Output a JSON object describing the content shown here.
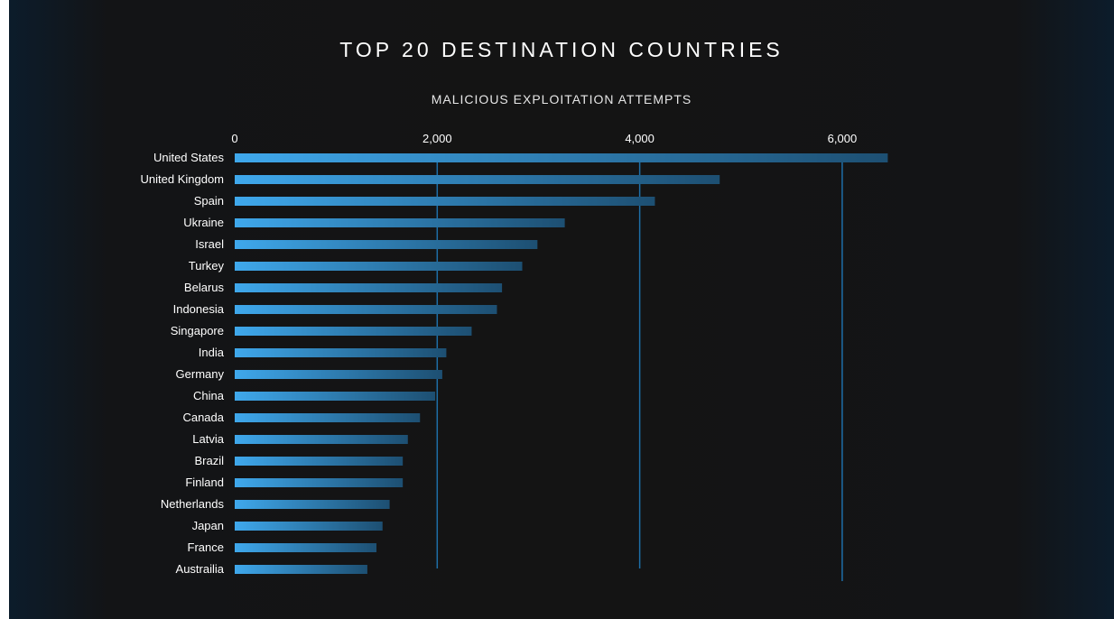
{
  "chart_data": {
    "type": "bar",
    "orientation": "horizontal",
    "title": "TOP 20 DESTINATION COUNTRIES",
    "subtitle": "MALICIOUS EXPLOITATION ATTEMPTS",
    "categories": [
      "United States",
      "United Kingdom",
      "Spain",
      "Ukraine",
      "Israel",
      "Turkey",
      "Belarus",
      "Indonesia",
      "Singapore",
      "India",
      "Germany",
      "China",
      "Canada",
      "Latvia",
      "Brazil",
      "Finland",
      "Netherlands",
      "Japan",
      "France",
      "Austrailia"
    ],
    "values": [
      6450,
      4790,
      4150,
      3260,
      2990,
      2840,
      2640,
      2590,
      2340,
      2090,
      2050,
      1980,
      1830,
      1710,
      1660,
      1660,
      1530,
      1460,
      1400,
      1310
    ],
    "xticks": [
      0,
      2000,
      4000,
      6000
    ],
    "xtick_labels": [
      "0",
      "2,000",
      "4,000",
      "6,000"
    ],
    "xlim": [
      0,
      6500
    ],
    "gridlines": true,
    "axis_position": "top",
    "colors": {
      "bar_start": "#3fa8ec",
      "bar_end": "#1d4f72",
      "gridline": "#1e6fa8",
      "text": "#ffffff"
    }
  }
}
